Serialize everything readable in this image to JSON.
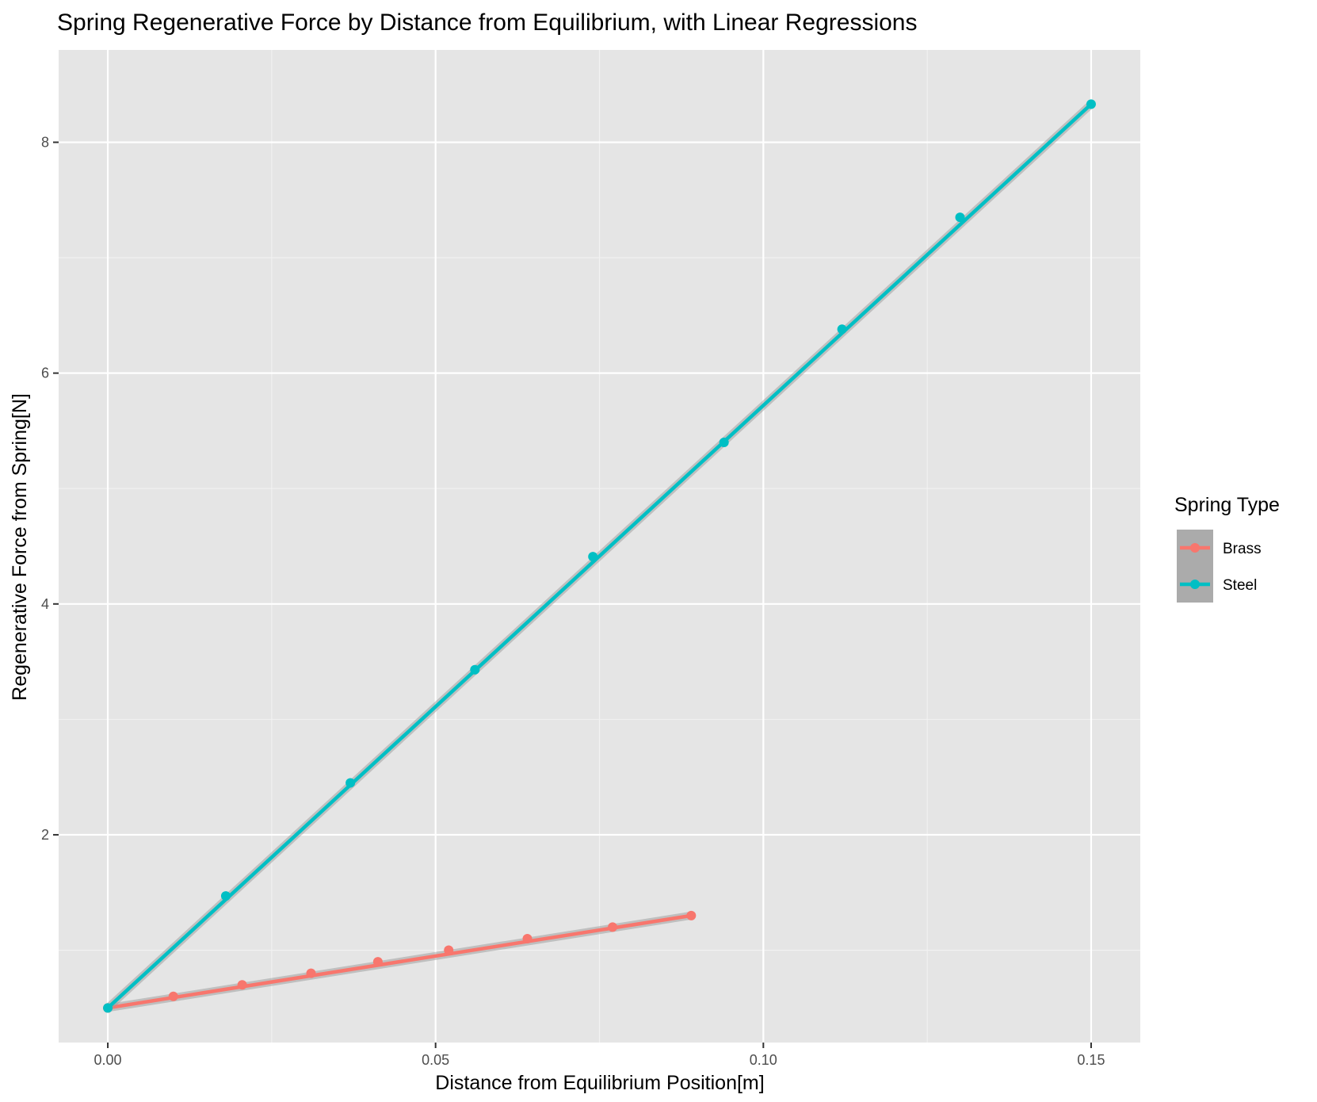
{
  "chart_data": {
    "type": "scatter",
    "title": "Spring Regenerative Force by Distance from Equilibrium, with Linear Regressions",
    "xlabel": "Distance from Equilibrium Position[m]",
    "ylabel": "Regenerative Force from Spring[N]",
    "xlim": [
      -0.0075,
      0.1575
    ],
    "ylim": [
      0.2,
      8.8
    ],
    "x_ticks": [
      0.0,
      0.05,
      0.1,
      0.15
    ],
    "x_tick_labels": [
      "0.00",
      "0.05",
      "0.10",
      "0.15"
    ],
    "y_ticks": [
      2,
      4,
      6,
      8
    ],
    "y_tick_labels": [
      "2",
      "4",
      "6",
      "8"
    ],
    "grid": true,
    "background": "#e5e5e5",
    "legend": {
      "title": "Spring Type",
      "position": "right"
    },
    "series": [
      {
        "name": "Brass",
        "color": "#f8766d",
        "x": [
          0.0,
          0.01,
          0.0205,
          0.031,
          0.0412,
          0.052,
          0.064,
          0.077,
          0.089
        ],
        "y": [
          0.5,
          0.6,
          0.7,
          0.8,
          0.9,
          1.0,
          1.1,
          1.2,
          1.3
        ],
        "regression": {
          "x": [
            0.0,
            0.089
          ],
          "y": [
            0.5,
            1.3
          ]
        }
      },
      {
        "name": "Steel",
        "color": "#00bfc4",
        "x": [
          0.0,
          0.018,
          0.037,
          0.056,
          0.074,
          0.094,
          0.112,
          0.13,
          0.15
        ],
        "y": [
          0.5,
          1.47,
          2.45,
          3.43,
          4.41,
          5.4,
          6.38,
          7.35,
          8.33
        ],
        "regression": {
          "x": [
            0.0,
            0.15
          ],
          "y": [
            0.5,
            8.33
          ]
        }
      }
    ]
  }
}
